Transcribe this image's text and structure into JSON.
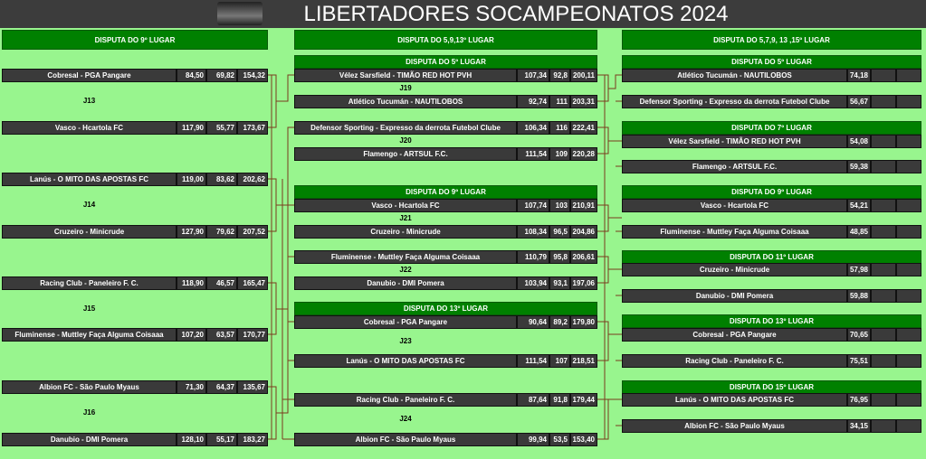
{
  "header": {
    "title": "LIBERTADORES SOCAMPEONATOS 2024"
  },
  "columns": [
    {
      "title": "DISPUTA DO 9º LUGAR",
      "games": [
        {
          "label": "J13",
          "teams": [
            {
              "name": "Cobresal - PGA Pangare",
              "score1": "84,50",
              "score2": "69,82",
              "total": "154,32"
            },
            {
              "name": "Vasco - Hcartola FC",
              "score1": "117,90",
              "score2": "55,77",
              "total": "173,67"
            }
          ]
        },
        {
          "label": "J14",
          "teams": [
            {
              "name": "Lanús - O MITO DAS APOSTAS FC",
              "score1": "119,00",
              "score2": "83,62",
              "total": "202,62"
            },
            {
              "name": "Cruzeiro - Minicrude",
              "score1": "127,90",
              "score2": "79,62",
              "total": "207,52"
            }
          ]
        },
        {
          "label": "J15",
          "teams": [
            {
              "name": "Racing Club - Paneleiro F. C.",
              "score1": "118,90",
              "score2": "46,57",
              "total": "165,47"
            },
            {
              "name": "Fluminense - Muttley Faça Alguma Coisaaa",
              "score1": "107,20",
              "score2": "63,57",
              "total": "170,77"
            }
          ]
        },
        {
          "label": "J16",
          "teams": [
            {
              "name": "Albion FC - São Paulo Myaus",
              "score1": "71,30",
              "score2": "64,37",
              "total": "135,67"
            },
            {
              "name": "Danubio - DMI Pomera",
              "score1": "128,10",
              "score2": "55,17",
              "total": "183,27"
            }
          ]
        }
      ]
    },
    {
      "title": "DISPUTA DO 5,9,13º LUGAR",
      "sections": [
        {
          "title": "DISPUTA DO 5º LUGAR",
          "games": [
            {
              "label": "J19",
              "teams": [
                {
                  "name": "Vélez Sarsfield - TIMÃO RED HOT PVH",
                  "score1": "107,34",
                  "score2": "92,8",
                  "total": "200,11"
                },
                {
                  "name": "Atlético Tucumán - NAUTILOBOS",
                  "score1": "92,74",
                  "score2": "111",
                  "total": "203,31"
                }
              ]
            },
            {
              "label": "J20",
              "teams": [
                {
                  "name": "Defensor Sporting - Expresso da derrota Futebol Clube",
                  "score1": "106,34",
                  "score2": "116",
                  "total": "222,41"
                },
                {
                  "name": "Flamengo - ARTSUL F.C.",
                  "score1": "111,54",
                  "score2": "109",
                  "total": "220,28"
                }
              ]
            }
          ]
        },
        {
          "title": "DISPUTA DO 9º LUGAR",
          "games": [
            {
              "label": "J21",
              "teams": [
                {
                  "name": "Vasco - Hcartola FC",
                  "score1": "107,74",
                  "score2": "103",
                  "total": "210,91"
                },
                {
                  "name": "Cruzeiro - Minicrude",
                  "score1": "108,34",
                  "score2": "96,5",
                  "total": "204,86"
                }
              ]
            },
            {
              "label": "J22",
              "teams": [
                {
                  "name": "Fluminense - Muttley Faça Alguma Coisaaa",
                  "score1": "110,79",
                  "score2": "95,8",
                  "total": "206,61"
                },
                {
                  "name": "Danubio - DMI Pomera",
                  "score1": "103,94",
                  "score2": "93,1",
                  "total": "197,06"
                }
              ]
            }
          ]
        },
        {
          "title": "DISPUTA DO 13º LUGAR",
          "games": [
            {
              "label": "J23",
              "teams": [
                {
                  "name": "Cobresal - PGA Pangare",
                  "score1": "90,64",
                  "score2": "89,2",
                  "total": "179,80"
                },
                {
                  "name": "Lanús - O MITO DAS APOSTAS FC",
                  "score1": "111,54",
                  "score2": "107",
                  "total": "218,51"
                }
              ]
            },
            {
              "label": "J24",
              "teams": [
                {
                  "name": "Racing Club - Paneleiro F. C.",
                  "score1": "87,64",
                  "score2": "91,8",
                  "total": "179,44"
                },
                {
                  "name": "Albion FC - São Paulo Myaus",
                  "score1": "99,94",
                  "score2": "53,5",
                  "total": "153,40"
                }
              ]
            }
          ]
        }
      ]
    },
    {
      "title": "DISPUTA DO 5,7,9, 13 ,15º LUGAR",
      "sections": [
        {
          "title": "DISPUTA DO 5º LUGAR",
          "teams": [
            {
              "name": "Atlético Tucumán - NAUTILOBOS",
              "score": "74,18"
            },
            {
              "name": "Defensor Sporting - Expresso da derrota Futebol Clube",
              "score": "56,67"
            }
          ]
        },
        {
          "title": "DISPUTA DO 7º LUGAR",
          "teams": [
            {
              "name": "Vélez Sarsfield - TIMÃO RED HOT PVH",
              "score": "54,08"
            },
            {
              "name": "Flamengo - ARTSUL F.C.",
              "score": "59,38"
            }
          ]
        },
        {
          "title": "DISPUTA DO 9º LUGAR",
          "teams": [
            {
              "name": "Vasco - Hcartola FC",
              "score": "54,21"
            },
            {
              "name": "Fluminense - Muttley Faça Alguma Coisaaa",
              "score": "48,85"
            }
          ]
        },
        {
          "title": "DISPUTA DO 11º LUGAR",
          "teams": [
            {
              "name": "Cruzeiro - Minicrude",
              "score": "57,98"
            },
            {
              "name": "Danubio - DMI Pomera",
              "score": "59,88"
            }
          ]
        },
        {
          "title": "DISPUTA DO 13º LUGAR",
          "teams": [
            {
              "name": "Cobresal - PGA Pangare",
              "score": "70,65"
            },
            {
              "name": "Racing Club - Paneleiro F. C.",
              "score": "75,51"
            }
          ]
        },
        {
          "title": "DISPUTA DO 15º LUGAR",
          "teams": [
            {
              "name": "Lanús - O MITO DAS APOSTAS FC",
              "score": "76,95"
            },
            {
              "name": "Albion FC - São Paulo Myaus",
              "score": "34,15"
            }
          ]
        }
      ]
    }
  ]
}
